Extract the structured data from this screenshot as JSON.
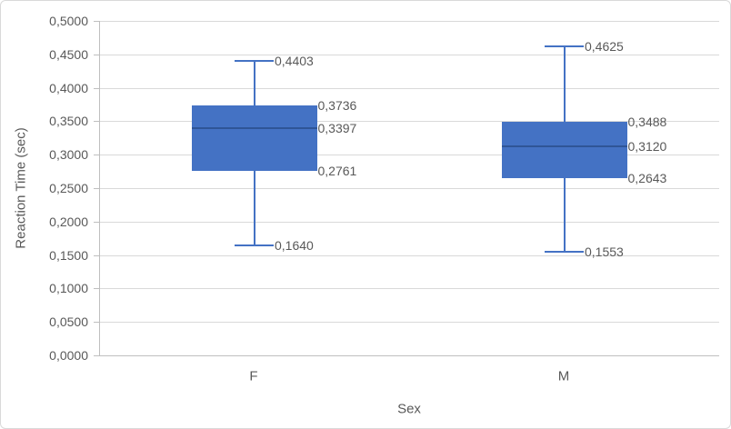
{
  "chart_data": {
    "type": "boxplot",
    "title": "",
    "xlabel": "Sex",
    "ylabel": "Reaction Time (sec)",
    "categories": [
      "F",
      "M"
    ],
    "series": [
      {
        "category": "F",
        "whisker_low": 0.164,
        "q1": 0.2761,
        "median": 0.3397,
        "q3": 0.3736,
        "whisker_high": 0.4403,
        "labels": {
          "whisker_low": "0,1640",
          "q1": "0,2761",
          "median": "0,3397",
          "q3": "0,3736",
          "whisker_high": "0,4403"
        }
      },
      {
        "category": "M",
        "whisker_low": 0.1553,
        "q1": 0.2643,
        "median": 0.312,
        "q3": 0.3488,
        "whisker_high": 0.4625,
        "labels": {
          "whisker_low": "0,1553",
          "q1": "0,2643",
          "median": "0,3120",
          "q3": "0,3488",
          "whisker_high": "0,4625"
        }
      }
    ],
    "ylim": [
      0,
      0.5
    ],
    "ytick_step": 0.05,
    "ytick_labels": [
      "0,0000",
      "0,0500",
      "0,1000",
      "0,1500",
      "0,2000",
      "0,2500",
      "0,3000",
      "0,3500",
      "0,4000",
      "0,4500",
      "0,5000"
    ],
    "grid": true,
    "legend": "none",
    "decimal_separator": ","
  },
  "colors": {
    "box_fill": "#4472C4",
    "box_border": "#4472C4",
    "median_line": "#2F5597",
    "whisker": "#4472C4",
    "gridline": "#D9D9D9",
    "axis_line": "#BFBFBF",
    "text": "#595959",
    "frame_border": "#D9D9D9",
    "background": "#FFFFFF"
  }
}
